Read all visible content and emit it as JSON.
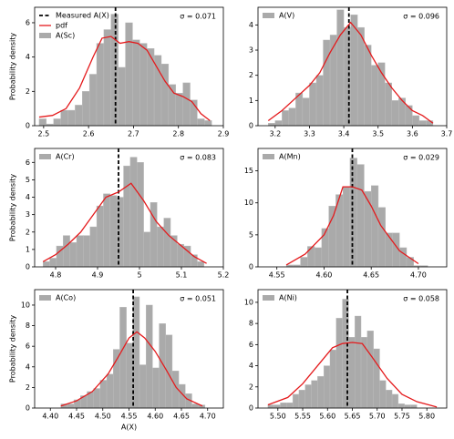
{
  "chart_data": [
    {
      "type": "histogram",
      "ylabel": "Probability density",
      "annotation": "σ = 0.071",
      "legend": "upper left",
      "xlim": [
        2.48,
        2.9
      ],
      "xticks": [
        2.5,
        2.6,
        2.7,
        2.8,
        2.9
      ],
      "ylim": [
        0,
        6.9
      ],
      "yticks": [
        0,
        2,
        4,
        6
      ],
      "series": [
        {
          "name": "Measured A(X)",
          "type": "vline",
          "color": "#000000",
          "value": 2.66
        },
        {
          "name": "pdf",
          "type": "line",
          "color": "#e41a1c",
          "x": [
            2.49,
            2.52,
            2.55,
            2.58,
            2.61,
            2.63,
            2.65,
            2.67,
            2.69,
            2.71,
            2.73,
            2.75,
            2.77,
            2.79,
            2.81,
            2.83,
            2.85,
            2.87
          ],
          "values": [
            0.5,
            0.6,
            1.0,
            2.2,
            4.0,
            5.1,
            5.2,
            4.8,
            4.9,
            4.8,
            4.4,
            3.5,
            2.6,
            1.9,
            1.7,
            1.4,
            0.7,
            0.3
          ]
        },
        {
          "name": "A(Sc)",
          "type": "hist",
          "color": "#aaaaaa",
          "bins": [
            2.49,
            2.506,
            2.522,
            2.538,
            2.554,
            2.57,
            2.586,
            2.602,
            2.618,
            2.634,
            2.65,
            2.666,
            2.682,
            2.698,
            2.714,
            2.73,
            2.746,
            2.762,
            2.778,
            2.794,
            2.81,
            2.826,
            2.842,
            2.858,
            2.874
          ],
          "values": [
            0.4,
            0.1,
            0.4,
            0.9,
            0.9,
            1.2,
            2.0,
            3.0,
            4.8,
            5.6,
            6.5,
            3.4,
            6.0,
            5.0,
            4.8,
            4.5,
            4.1,
            3.6,
            2.4,
            1.9,
            2.5,
            1.5,
            0.4,
            0.3
          ]
        }
      ]
    },
    {
      "type": "histogram",
      "annotation": "σ = 0.096",
      "legend": "upper left",
      "xlim": [
        3.15,
        3.7
      ],
      "xticks": [
        3.2,
        3.3,
        3.4,
        3.5,
        3.6,
        3.7
      ],
      "ylim": [
        0,
        4.7
      ],
      "yticks": [
        0,
        1,
        2,
        3,
        4
      ],
      "series": [
        {
          "type": "vline",
          "color": "#000000",
          "value": 3.415
        },
        {
          "type": "line",
          "color": "#e41a1c",
          "x": [
            3.18,
            3.22,
            3.26,
            3.3,
            3.33,
            3.36,
            3.39,
            3.42,
            3.45,
            3.48,
            3.51,
            3.54,
            3.57,
            3.6,
            3.63,
            3.66
          ],
          "values": [
            0.2,
            0.6,
            1.1,
            1.6,
            2.1,
            2.9,
            3.6,
            4.1,
            3.6,
            2.8,
            2.1,
            1.5,
            1.0,
            0.6,
            0.4,
            0.1
          ]
        },
        {
          "name": "A(V)",
          "type": "hist",
          "color": "#aaaaaa",
          "bins": [
            3.18,
            3.2,
            3.22,
            3.24,
            3.26,
            3.28,
            3.3,
            3.32,
            3.34,
            3.36,
            3.38,
            3.4,
            3.42,
            3.44,
            3.46,
            3.48,
            3.5,
            3.52,
            3.54,
            3.56,
            3.58,
            3.6,
            3.62,
            3.64,
            3.66
          ],
          "values": [
            0.1,
            0.2,
            0.6,
            0.7,
            1.3,
            1.1,
            1.7,
            2.0,
            3.4,
            3.6,
            4.6,
            3.9,
            4.4,
            3.9,
            3.2,
            2.4,
            2.5,
            1.7,
            1.0,
            1.1,
            0.8,
            0.4,
            0.2,
            0.2
          ]
        }
      ]
    },
    {
      "type": "histogram",
      "ylabel": "Probability density",
      "annotation": "σ = 0.083",
      "legend": "upper left",
      "xlim": [
        4.75,
        5.2
      ],
      "xticks": [
        4.8,
        4.9,
        5.0,
        5.1,
        5.2
      ],
      "ylim": [
        0,
        6.8
      ],
      "yticks": [
        0,
        1,
        2,
        3,
        4,
        5,
        6
      ],
      "series": [
        {
          "type": "vline",
          "color": "#000000",
          "value": 4.95
        },
        {
          "type": "line",
          "color": "#e41a1c",
          "x": [
            4.77,
            4.8,
            4.83,
            4.86,
            4.89,
            4.92,
            4.95,
            4.98,
            5.01,
            5.04,
            5.07,
            5.1,
            5.13,
            5.16
          ],
          "values": [
            0.3,
            0.7,
            1.3,
            2.0,
            3.0,
            4.0,
            4.3,
            4.8,
            3.8,
            2.6,
            1.8,
            1.2,
            0.6,
            0.2
          ]
        },
        {
          "name": "A(Cr)",
          "type": "hist",
          "color": "#aaaaaa",
          "bins": [
            4.77,
            4.786,
            4.802,
            4.818,
            4.834,
            4.85,
            4.866,
            4.882,
            4.898,
            4.914,
            4.93,
            4.946,
            4.962,
            4.978,
            4.994,
            5.01,
            5.026,
            5.042,
            5.058,
            5.074,
            5.09,
            5.106,
            5.122,
            5.138,
            5.154
          ],
          "values": [
            0.3,
            0.5,
            1.2,
            1.8,
            1.4,
            1.8,
            1.8,
            2.3,
            3.5,
            4.2,
            4.1,
            4.0,
            5.8,
            6.3,
            6.0,
            2.0,
            3.7,
            2.3,
            2.8,
            1.8,
            1.3,
            1.2,
            0.7,
            0.3
          ]
        }
      ]
    },
    {
      "type": "histogram",
      "annotation": "σ = 0.029",
      "legend": "upper left",
      "xlim": [
        4.53,
        4.73
      ],
      "xticks": [
        4.55,
        {
          "value": 4.6,
          "label": "4.60"
        },
        4.65,
        {
          "value": 4.7,
          "label": "4.70"
        }
      ],
      "ylim": [
        0,
        18.5
      ],
      "yticks": [
        0,
        5,
        10,
        15
      ],
      "series": [
        {
          "type": "vline",
          "color": "#000000",
          "value": 4.63
        },
        {
          "type": "line",
          "color": "#e41a1c",
          "x": [
            4.56,
            4.58,
            4.6,
            4.61,
            4.62,
            4.63,
            4.64,
            4.65,
            4.66,
            4.67,
            4.68,
            4.7
          ],
          "values": [
            0.3,
            2.0,
            5.0,
            8.0,
            12.5,
            12.5,
            12.0,
            9.5,
            6.5,
            4.5,
            2.5,
            0.5
          ]
        },
        {
          "name": "A(Mn)",
          "type": "hist",
          "color": "#aaaaaa",
          "bins": [
            4.56,
            4.5675,
            4.575,
            4.5825,
            4.59,
            4.5975,
            4.605,
            4.6125,
            4.62,
            4.6275,
            4.635,
            4.6425,
            4.65,
            4.6575,
            4.665,
            4.6725,
            4.68,
            4.6875,
            4.695,
            4.7025,
            4.71
          ],
          "values": [
            0.3,
            0.3,
            1.5,
            3.2,
            3.0,
            6.0,
            9.5,
            11.3,
            12.5,
            17.0,
            16.0,
            11.8,
            12.7,
            9.3,
            5.3,
            5.3,
            3.0,
            1.5,
            0.2,
            0.2
          ]
        }
      ]
    },
    {
      "type": "histogram",
      "ylabel": "Probability density",
      "xlabel": "A(X)",
      "annotation": "σ = 0.051",
      "legend": "upper left",
      "xlim": [
        4.37,
        4.73
      ],
      "xticks": [
        {
          "value": 4.4,
          "label": "4.40"
        },
        4.45,
        {
          "value": 4.5,
          "label": "4.50"
        },
        4.55,
        {
          "value": 4.6,
          "label": "4.60"
        },
        4.65,
        {
          "value": 4.7,
          "label": "4.70"
        }
      ],
      "ylim": [
        0,
        11.5
      ],
      "yticks": [
        0,
        2,
        4,
        6,
        8,
        10
      ],
      "series": [
        {
          "type": "vline",
          "color": "#000000",
          "value": 4.558
        },
        {
          "type": "line",
          "color": "#e41a1c",
          "x": [
            4.42,
            4.45,
            4.48,
            4.51,
            4.53,
            4.55,
            4.565,
            4.58,
            4.6,
            4.62,
            4.64,
            4.66,
            4.69
          ],
          "values": [
            0.2,
            0.7,
            1.6,
            3.3,
            5.0,
            6.8,
            7.4,
            6.8,
            5.5,
            3.8,
            2.0,
            0.9,
            0.2
          ]
        },
        {
          "name": "A(Co)",
          "type": "hist",
          "color": "#aaaaaa",
          "bins": [
            4.42,
            4.4325,
            4.445,
            4.4575,
            4.47,
            4.4825,
            4.495,
            4.5075,
            4.52,
            4.5325,
            4.545,
            4.5575,
            4.57,
            4.5825,
            4.595,
            4.6075,
            4.62,
            4.6325,
            4.645,
            4.6575,
            4.67,
            4.6825,
            4.695
          ],
          "values": [
            0.4,
            0.4,
            0.8,
            1.2,
            1.6,
            1.9,
            2.7,
            3.3,
            5.7,
            9.8,
            6.3,
            10.8,
            4.2,
            10.0,
            3.9,
            8.2,
            7.1,
            3.6,
            2.3,
            1.4,
            0.4,
            0.3
          ]
        }
      ]
    },
    {
      "type": "histogram",
      "annotation": "σ = 0.058",
      "legend": "upper left",
      "xlim": [
        5.46,
        5.84
      ],
      "xticks": [
        {
          "value": 5.5,
          "label": "5.50"
        },
        5.55,
        {
          "value": 5.6,
          "label": "5.60"
        },
        5.65,
        {
          "value": 5.7,
          "label": "5.70"
        },
        5.75,
        {
          "value": 5.8,
          "label": "5.80"
        }
      ],
      "ylim": [
        0,
        11.2
      ],
      "yticks": [
        0,
        2,
        4,
        6,
        8,
        10
      ],
      "series": [
        {
          "type": "vline",
          "color": "#000000",
          "value": 5.64
        },
        {
          "type": "line",
          "color": "#e41a1c",
          "x": [
            5.48,
            5.52,
            5.55,
            5.58,
            5.61,
            5.63,
            5.65,
            5.67,
            5.69,
            5.72,
            5.75,
            5.78,
            5.82
          ],
          "values": [
            0.3,
            1.0,
            2.3,
            4.0,
            5.7,
            6.1,
            6.2,
            6.1,
            4.8,
            2.8,
            1.3,
            0.6,
            0.1
          ]
        },
        {
          "name": "A(Ni)",
          "type": "hist",
          "color": "#aaaaaa",
          "bins": [
            5.48,
            5.4925,
            5.505,
            5.5175,
            5.53,
            5.5425,
            5.555,
            5.5675,
            5.58,
            5.5925,
            5.605,
            5.6175,
            5.63,
            5.6425,
            5.655,
            5.6675,
            5.68,
            5.6925,
            5.705,
            5.7175,
            5.73,
            5.7425,
            5.755,
            5.7675,
            5.78
          ],
          "values": [
            0.3,
            0.3,
            0.5,
            0.5,
            1.3,
            1.7,
            2.2,
            2.6,
            3.0,
            4.0,
            5.5,
            8.5,
            10.3,
            6.7,
            8.7,
            6.7,
            7.3,
            5.6,
            2.6,
            1.7,
            1.3,
            0.4,
            0.3,
            0.3
          ]
        }
      ]
    }
  ]
}
